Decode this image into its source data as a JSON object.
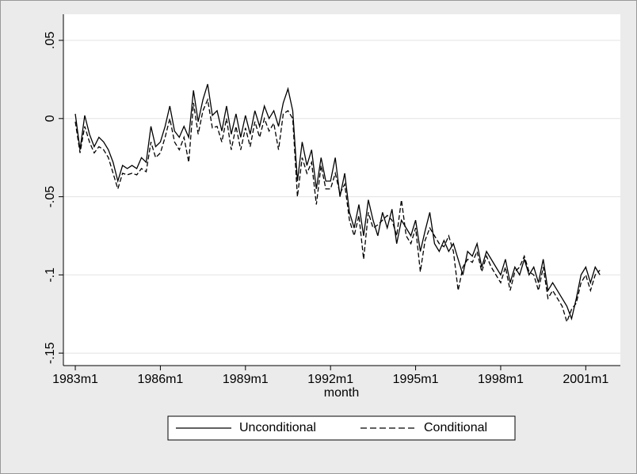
{
  "chart_data": {
    "type": "line",
    "x_label": "month",
    "x": [
      1983,
      1983.167,
      1983.333,
      1983.5,
      1983.667,
      1983.833,
      1984,
      1984.167,
      1984.333,
      1984.5,
      1984.667,
      1984.833,
      1985,
      1985.167,
      1985.333,
      1985.5,
      1985.667,
      1985.833,
      1986,
      1986.167,
      1986.333,
      1986.5,
      1986.667,
      1986.833,
      1987,
      1987.167,
      1987.333,
      1987.5,
      1987.667,
      1987.833,
      1988,
      1988.167,
      1988.333,
      1988.5,
      1988.667,
      1988.833,
      1989,
      1989.167,
      1989.333,
      1989.5,
      1989.667,
      1989.833,
      1990,
      1990.167,
      1990.333,
      1990.5,
      1990.667,
      1990.833,
      1991,
      1991.167,
      1991.333,
      1991.5,
      1991.667,
      1991.833,
      1992,
      1992.167,
      1992.333,
      1992.5,
      1992.667,
      1992.833,
      1993,
      1993.167,
      1993.333,
      1993.5,
      1993.667,
      1993.833,
      1994,
      1994.167,
      1994.333,
      1994.5,
      1994.667,
      1994.833,
      1995,
      1995.167,
      1995.333,
      1995.5,
      1995.667,
      1995.833,
      1996,
      1996.167,
      1996.333,
      1996.5,
      1996.667,
      1996.833,
      1997,
      1997.167,
      1997.333,
      1997.5,
      1997.667,
      1997.833,
      1998,
      1998.167,
      1998.333,
      1998.5,
      1998.667,
      1998.833,
      1999,
      1999.167,
      1999.333,
      1999.5,
      1999.667,
      1999.833,
      2000,
      2000.167,
      2000.333,
      2000.5,
      2000.667,
      2000.833,
      2001,
      2001.167,
      2001.333,
      2001.5
    ],
    "series": [
      {
        "name": "Unconditional",
        "color": "#000000",
        "dash": false,
        "values": [
          0.003,
          -0.02,
          0.002,
          -0.01,
          -0.018,
          -0.012,
          -0.015,
          -0.02,
          -0.028,
          -0.04,
          -0.03,
          -0.032,
          -0.03,
          -0.032,
          -0.025,
          -0.028,
          -0.005,
          -0.018,
          -0.015,
          -0.005,
          0.008,
          -0.008,
          -0.012,
          -0.005,
          -0.012,
          0.018,
          -0.002,
          0.012,
          0.022,
          0.002,
          0.005,
          -0.008,
          0.008,
          -0.01,
          0.003,
          -0.012,
          0.002,
          -0.01,
          0.005,
          -0.005,
          0.008,
          0.0,
          0.005,
          -0.005,
          0.01,
          0.019,
          0.005,
          -0.04,
          -0.015,
          -0.03,
          -0.02,
          -0.045,
          -0.025,
          -0.04,
          -0.04,
          -0.025,
          -0.05,
          -0.035,
          -0.06,
          -0.07,
          -0.055,
          -0.075,
          -0.052,
          -0.065,
          -0.075,
          -0.06,
          -0.07,
          -0.058,
          -0.08,
          -0.065,
          -0.07,
          -0.075,
          -0.065,
          -0.085,
          -0.072,
          -0.06,
          -0.08,
          -0.085,
          -0.078,
          -0.085,
          -0.08,
          -0.09,
          -0.1,
          -0.085,
          -0.088,
          -0.08,
          -0.095,
          -0.085,
          -0.09,
          -0.095,
          -0.1,
          -0.09,
          -0.105,
          -0.095,
          -0.1,
          -0.09,
          -0.1,
          -0.095,
          -0.105,
          -0.09,
          -0.11,
          -0.105,
          -0.11,
          -0.115,
          -0.12,
          -0.128,
          -0.115,
          -0.1,
          -0.095,
          -0.105,
          -0.095,
          -0.1
        ]
      },
      {
        "name": "Conditional",
        "color": "#000000",
        "dash": true,
        "values": [
          -0.002,
          -0.022,
          -0.005,
          -0.015,
          -0.022,
          -0.018,
          -0.02,
          -0.025,
          -0.035,
          -0.045,
          -0.035,
          -0.036,
          -0.035,
          -0.036,
          -0.032,
          -0.034,
          -0.015,
          -0.025,
          -0.022,
          -0.012,
          0.0,
          -0.015,
          -0.02,
          -0.012,
          -0.028,
          0.01,
          -0.01,
          0.005,
          0.012,
          -0.006,
          -0.005,
          -0.015,
          0.0,
          -0.02,
          -0.005,
          -0.02,
          -0.006,
          -0.018,
          -0.002,
          -0.012,
          0.0,
          -0.008,
          -0.003,
          -0.02,
          0.003,
          0.005,
          0.0,
          -0.05,
          -0.025,
          -0.035,
          -0.028,
          -0.055,
          -0.03,
          -0.045,
          -0.045,
          -0.035,
          -0.048,
          -0.042,
          -0.065,
          -0.075,
          -0.062,
          -0.09,
          -0.06,
          -0.07,
          -0.068,
          -0.065,
          -0.062,
          -0.065,
          -0.075,
          -0.052,
          -0.075,
          -0.08,
          -0.07,
          -0.098,
          -0.078,
          -0.07,
          -0.075,
          -0.08,
          -0.082,
          -0.075,
          -0.085,
          -0.11,
          -0.095,
          -0.09,
          -0.092,
          -0.085,
          -0.098,
          -0.088,
          -0.095,
          -0.1,
          -0.105,
          -0.095,
          -0.11,
          -0.098,
          -0.095,
          -0.088,
          -0.098,
          -0.1,
          -0.11,
          -0.095,
          -0.115,
          -0.11,
          -0.115,
          -0.12,
          -0.13,
          -0.122,
          -0.118,
          -0.105,
          -0.1,
          -0.11,
          -0.1,
          -0.097
        ]
      }
    ],
    "xlim": [
      1982.58,
      2002.22
    ],
    "ylim": [
      -0.158,
      0.0667
    ],
    "xticks": [
      {
        "value": 1983,
        "label": "1983m1"
      },
      {
        "value": 1986,
        "label": "1986m1"
      },
      {
        "value": 1989,
        "label": "1989m1"
      },
      {
        "value": 1992,
        "label": "1992m1"
      },
      {
        "value": 1995,
        "label": "1995m1"
      },
      {
        "value": 1998,
        "label": "1998m1"
      },
      {
        "value": 2001,
        "label": "2001m1"
      }
    ],
    "yticks": [
      {
        "value": -0.15,
        "label": "-.15"
      },
      {
        "value": -0.1,
        "label": "-.1"
      },
      {
        "value": -0.05,
        "label": "-.05"
      },
      0,
      {
        "value": 0.05,
        "label": ".05"
      }
    ],
    "grid": true
  }
}
